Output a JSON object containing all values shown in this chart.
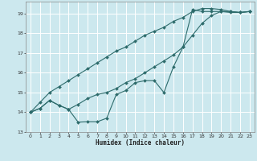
{
  "xlabel": "Humidex (Indice chaleur)",
  "background_color": "#cce8ee",
  "grid_color": "#ffffff",
  "line_color": "#2d6b6b",
  "xlim": [
    -0.5,
    23.5
  ],
  "ylim": [
    13.0,
    19.6
  ],
  "yticks": [
    13,
    14,
    15,
    16,
    17,
    18,
    19
  ],
  "xticks": [
    0,
    1,
    2,
    3,
    4,
    5,
    6,
    7,
    8,
    9,
    10,
    11,
    12,
    13,
    14,
    15,
    16,
    17,
    18,
    19,
    20,
    21,
    22,
    23
  ],
  "line1_x": [
    0,
    1,
    2,
    3,
    4,
    5,
    6,
    7,
    8,
    9,
    10,
    11,
    12,
    13,
    14,
    15,
    16,
    17,
    18,
    19,
    20,
    21,
    22,
    23
  ],
  "line1_y": [
    14.0,
    14.2,
    14.6,
    14.35,
    14.15,
    13.5,
    13.52,
    13.52,
    13.7,
    14.9,
    15.1,
    15.5,
    15.6,
    15.6,
    15.0,
    16.3,
    17.3,
    19.2,
    19.1,
    19.1,
    19.1,
    19.05,
    19.05,
    19.1
  ],
  "line2_x": [
    0,
    1,
    2,
    3,
    4,
    5,
    6,
    7,
    8,
    9,
    10,
    11,
    12,
    13,
    14,
    15,
    16,
    17,
    18,
    19,
    20,
    21,
    22,
    23
  ],
  "line2_y": [
    14.0,
    14.5,
    15.0,
    15.3,
    15.6,
    15.9,
    16.2,
    16.5,
    16.8,
    17.1,
    17.3,
    17.6,
    17.9,
    18.1,
    18.3,
    18.6,
    18.8,
    19.1,
    19.25,
    19.25,
    19.2,
    19.1,
    19.05,
    19.1
  ],
  "line3_x": [
    0,
    1,
    2,
    3,
    4,
    5,
    6,
    7,
    8,
    9,
    10,
    11,
    12,
    13,
    14,
    15,
    16,
    17,
    18,
    19,
    20,
    21,
    22,
    23
  ],
  "line3_y": [
    14.0,
    14.2,
    14.6,
    14.35,
    14.15,
    14.4,
    14.7,
    14.9,
    15.0,
    15.2,
    15.5,
    15.7,
    16.0,
    16.3,
    16.6,
    16.9,
    17.3,
    17.9,
    18.5,
    18.9,
    19.1,
    19.1,
    19.05,
    19.1
  ]
}
